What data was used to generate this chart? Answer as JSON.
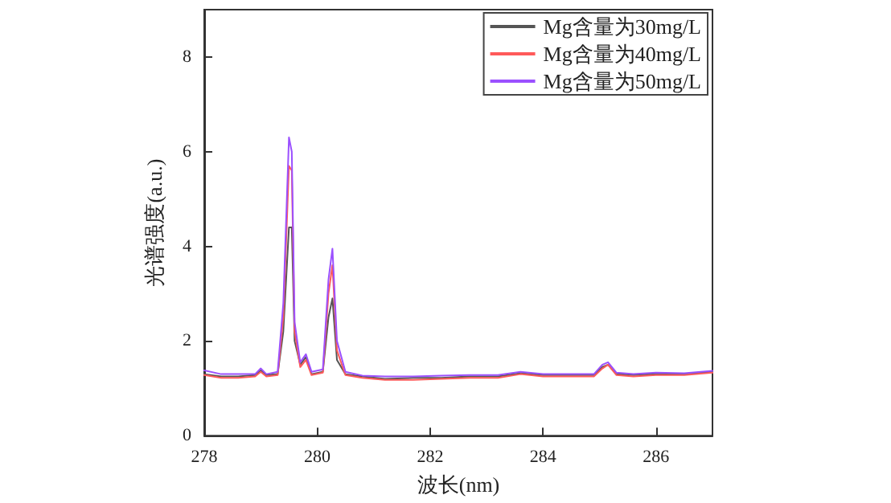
{
  "chart_data": {
    "type": "line",
    "xlabel": "波长(nm)",
    "ylabel": "光谱强度(a.u.)",
    "x": [
      278,
      278.3,
      278.6,
      278.9,
      279.0,
      279.1,
      279.3,
      279.4,
      279.5,
      279.55,
      279.6,
      279.7,
      279.8,
      279.9,
      280.1,
      280.2,
      280.27,
      280.35,
      280.5,
      280.8,
      281.2,
      281.7,
      282.2,
      282.7,
      283.2,
      283.6,
      284.0,
      284.5,
      284.9,
      285.05,
      285.15,
      285.3,
      285.6,
      286.0,
      286.5,
      287
    ],
    "series": [
      {
        "name": "Mg含量为30mg/L",
        "color": "#555555",
        "values": [
          1.3,
          1.25,
          1.25,
          1.28,
          1.38,
          1.28,
          1.3,
          2.2,
          4.4,
          4.4,
          2.0,
          1.5,
          1.66,
          1.3,
          1.35,
          2.5,
          2.9,
          1.6,
          1.3,
          1.25,
          1.2,
          1.22,
          1.22,
          1.25,
          1.25,
          1.32,
          1.28,
          1.28,
          1.28,
          1.45,
          1.5,
          1.3,
          1.28,
          1.3,
          1.3,
          1.35
        ]
      },
      {
        "name": "Mg含量为40mg/L",
        "color": "#ff5a5a",
        "values": [
          1.28,
          1.22,
          1.22,
          1.25,
          1.35,
          1.25,
          1.28,
          2.5,
          5.7,
          5.6,
          2.2,
          1.45,
          1.6,
          1.28,
          1.33,
          3.0,
          3.6,
          1.8,
          1.28,
          1.22,
          1.18,
          1.18,
          1.2,
          1.22,
          1.22,
          1.3,
          1.25,
          1.25,
          1.25,
          1.42,
          1.5,
          1.28,
          1.25,
          1.28,
          1.28,
          1.33
        ]
      },
      {
        "name": "Mg含量为50mg/L",
        "color": "#9b50ff",
        "values": [
          1.38,
          1.3,
          1.3,
          1.3,
          1.42,
          1.3,
          1.35,
          2.8,
          6.3,
          6.0,
          2.4,
          1.55,
          1.72,
          1.35,
          1.4,
          3.3,
          3.95,
          2.0,
          1.35,
          1.27,
          1.25,
          1.25,
          1.27,
          1.28,
          1.28,
          1.35,
          1.3,
          1.3,
          1.3,
          1.5,
          1.55,
          1.33,
          1.3,
          1.33,
          1.32,
          1.37
        ]
      }
    ],
    "xlim": [
      278,
      287
    ],
    "xticks": [
      278,
      280,
      282,
      284,
      286
    ],
    "ylim": [
      0,
      9
    ],
    "yticks": [
      0,
      2,
      4,
      6,
      8
    ],
    "legend": "top right",
    "grid": false,
    "marker": "none",
    "line_style": "solid"
  }
}
